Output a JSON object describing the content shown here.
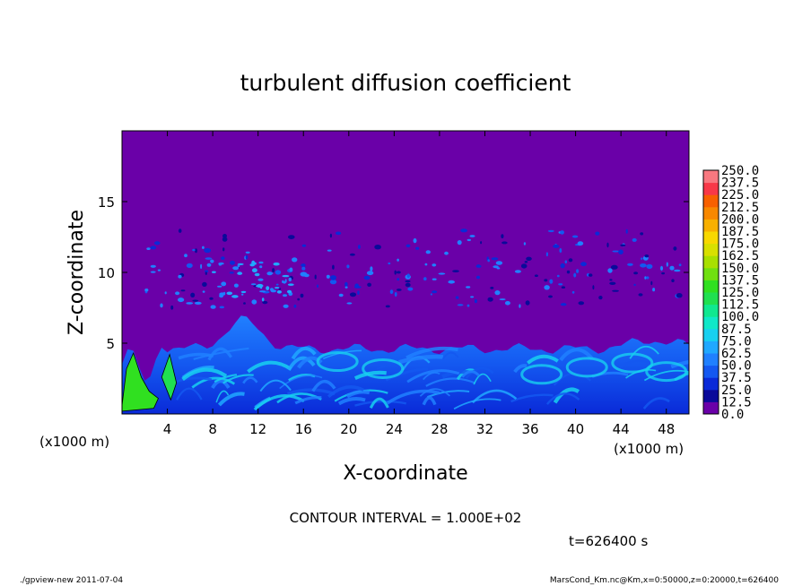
{
  "chart_data": {
    "type": "heatmap",
    "title": "turbulent diffusion coefficient",
    "xlabel": "X-coordinate",
    "ylabel": "Z-coordinate",
    "x_unit_left": "(x1000 m)",
    "x_unit_right": "(x1000 m)",
    "xlim": [
      0,
      50
    ],
    "ylim": [
      0,
      20
    ],
    "x_ticks": [
      4,
      8,
      12,
      16,
      20,
      24,
      28,
      32,
      36,
      40,
      44,
      48
    ],
    "x_tick_labels": [
      "4",
      "8",
      "12",
      "16",
      "20",
      "24",
      "28",
      "32",
      "36",
      "40",
      "44",
      "48"
    ],
    "y_ticks": [
      5,
      10,
      15
    ],
    "y_tick_labels": [
      "5",
      "10",
      "15"
    ],
    "background_color": "#6a00a8",
    "colorbar": {
      "levels": [
        0.0,
        12.5,
        25.0,
        37.5,
        50.0,
        62.5,
        75.0,
        87.5,
        100.0,
        112.5,
        125.0,
        137.5,
        150.0,
        162.5,
        175.0,
        187.5,
        200.0,
        212.5,
        225.0,
        237.5,
        250.0
      ],
      "labels": [
        "0.0",
        "12.5",
        "25.0",
        "37.5",
        "50.0",
        "62.5",
        "75.0",
        "87.5",
        "100.0",
        "112.5",
        "125.0",
        "137.5",
        "150.0",
        "162.5",
        "175.0",
        "187.5",
        "200.0",
        "212.5",
        "225.0",
        "237.5",
        "250.0"
      ],
      "colors": [
        "#6a00a8",
        "#0a0a9a",
        "#0a2ad8",
        "#1458f0",
        "#2080ff",
        "#20a8ff",
        "#18d0f0",
        "#10e8c8",
        "#10e890",
        "#20e050",
        "#30e020",
        "#70e010",
        "#a8e000",
        "#d8e000",
        "#f8d800",
        "#f8b000",
        "#f88800",
        "#f86000",
        "#f83848",
        "#f87880"
      ]
    },
    "contour_interval_text": "CONTOUR INTERVAL = 1.000E+02",
    "time_text": "t=626400 s",
    "footer_left": "./gpview-new   2011-07-04",
    "footer_right": "MarsCond_Km.nc@Km,x=0:50000,z=0:20000,t=626400",
    "grid": false
  }
}
